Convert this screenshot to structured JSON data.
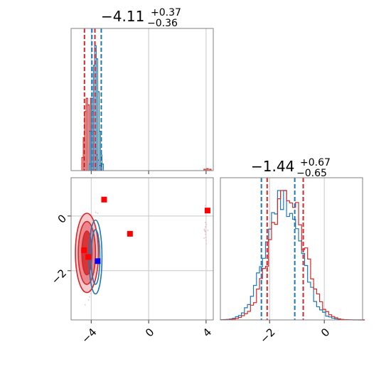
{
  "chart_data": [
    {
      "type": "histogram",
      "panel": "marginal-param-1",
      "title": {
        "median": "−4.11",
        "plus": "+0.37",
        "minus": "−0.36"
      },
      "xlim": [
        -5.4,
        4.5
      ],
      "x_ticks": [
        -4,
        0,
        4
      ],
      "grid": true,
      "series": [
        {
          "color": "#d62728",
          "quantile_lines": [
            -4.47,
            -3.74
          ],
          "bins": [
            [
              -4.6,
              0.1
            ],
            [
              -4.5,
              0.25
            ],
            [
              -4.4,
              0.45
            ],
            [
              -4.3,
              0.55
            ],
            [
              -4.2,
              0.5
            ],
            [
              -4.1,
              0.3
            ],
            [
              -4.0,
              0.55
            ],
            [
              -3.9,
              0.45
            ],
            [
              -3.8,
              0.3
            ],
            [
              -3.7,
              0.2
            ],
            [
              -3.6,
              0.12
            ],
            [
              -3.5,
              0.08
            ],
            [
              -3.4,
              0.04
            ],
            [
              -3.3,
              0.02
            ],
            [
              3.9,
              0.01
            ],
            [
              4.1,
              0.015
            ],
            [
              4.3,
              0.01
            ]
          ]
        },
        {
          "color": "#1f77b4",
          "quantile_lines": [
            -3.95,
            -3.3
          ],
          "bins": [
            [
              -4.1,
              0.05
            ],
            [
              -4.0,
              0.3
            ],
            [
              -3.9,
              0.55
            ],
            [
              -3.8,
              0.8
            ],
            [
              -3.7,
              0.95
            ],
            [
              -3.6,
              0.85
            ],
            [
              -3.5,
              0.6
            ],
            [
              -3.4,
              0.3
            ],
            [
              -3.3,
              0.12
            ],
            [
              -3.2,
              0.05
            ]
          ]
        }
      ]
    },
    {
      "type": "histogram",
      "panel": "marginal-param-2",
      "title": {
        "median": "−1.44",
        "plus": "+0.67",
        "minus": "−0.65"
      },
      "xlim": [
        -3.8,
        1.4
      ],
      "x_ticks": [
        -2,
        0
      ],
      "grid": true,
      "series": [
        {
          "color": "#1f77b4",
          "quantile_lines": [
            -2.3,
            -1.08
          ]
        },
        {
          "color": "#d62728",
          "quantile_lines": [
            -2.09,
            -0.77
          ]
        }
      ]
    },
    {
      "type": "scatter",
      "panel": "joint-param-1-vs-param-2",
      "xlim": [
        -5.4,
        4.5
      ],
      "ylim": [
        -3.8,
        1.4
      ],
      "x_ticks": [
        -4,
        0,
        4
      ],
      "y_ticks": [
        0,
        -2
      ],
      "grid": true,
      "points": [
        {
          "x": -3.1,
          "y": 0.6,
          "color": "#ff0000"
        },
        {
          "x": 4.1,
          "y": 0.2,
          "color": "#ff0000"
        },
        {
          "x": -1.3,
          "y": -0.65,
          "color": "#ff0000"
        },
        {
          "x": -4.5,
          "y": -1.25,
          "color": "#ff0000"
        },
        {
          "x": -4.2,
          "y": -1.5,
          "color": "#ff0000"
        },
        {
          "x": -3.55,
          "y": -1.65,
          "color": "#0000ff"
        }
      ],
      "contours": [
        {
          "color": "#d62728",
          "center": [
            -4.3,
            -1.35
          ],
          "levels": [
            [
              0.8,
              1.45
            ],
            [
              0.6,
              1.15
            ],
            [
              0.35,
              0.8
            ]
          ]
        },
        {
          "color": "#1f77b4",
          "center": [
            -3.7,
            -1.5
          ],
          "levels": [
            [
              0.45,
              1.35
            ],
            [
              0.3,
              1.0
            ]
          ]
        }
      ]
    }
  ]
}
